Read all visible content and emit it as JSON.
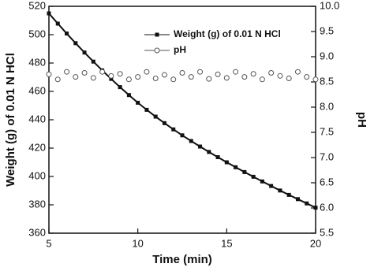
{
  "chart_data": {
    "type": "line",
    "xlabel": "Time (min)",
    "ylabel": "Weight (g) of 0.01 N HCl",
    "y2label": "pH",
    "x": [
      5,
      5.5,
      6,
      6.5,
      7,
      7.5,
      8,
      8.5,
      9,
      9.5,
      10,
      10.5,
      11,
      11.5,
      12,
      12.5,
      13,
      13.5,
      14,
      14.5,
      15,
      15.5,
      16,
      16.5,
      17,
      17.5,
      18,
      18.5,
      19,
      19.5,
      20
    ],
    "series": [
      {
        "name": "Weight (g) of 0.01 N HCl",
        "color": "#111111",
        "marker": "square",
        "line": true,
        "values": [
          515,
          507.8,
          500.8,
          494,
          487.4,
          481,
          474.8,
          468.8,
          463,
          457.4,
          452,
          447,
          442.2,
          437.6,
          433.2,
          429,
          425,
          421.1,
          417.3,
          413.6,
          410,
          406.5,
          403.1,
          399.8,
          396.5,
          393.3,
          390.1,
          387,
          384,
          381,
          378
        ]
      },
      {
        "name": "pH",
        "color": "#555555",
        "marker": "circle",
        "line": false,
        "axis": "y2",
        "values": [
          8.65,
          8.55,
          8.7,
          8.6,
          8.68,
          8.58,
          8.7,
          8.62,
          8.66,
          8.55,
          8.6,
          8.7,
          8.57,
          8.64,
          8.55,
          8.68,
          8.6,
          8.7,
          8.56,
          8.65,
          8.58,
          8.7,
          8.6,
          8.66,
          8.55,
          8.68,
          8.62,
          8.57,
          8.7,
          8.6,
          8.55
        ]
      }
    ],
    "xlim": [
      5,
      20
    ],
    "xticks": [
      5,
      10,
      15,
      20
    ],
    "ylim": [
      360,
      520
    ],
    "yticks": [
      360,
      380,
      400,
      420,
      440,
      460,
      480,
      500,
      520
    ],
    "y2lim": [
      5.5,
      10.0
    ],
    "y2ticks": [
      5.5,
      {
        "value": 6,
        "label": "6.0"
      },
      6.5,
      {
        "value": 7,
        "label": "7.0"
      },
      7.5,
      {
        "value": 8,
        "label": "8.0"
      },
      8.5,
      {
        "value": 9,
        "label": "9.0"
      },
      9.5,
      {
        "value": 10,
        "label": "10.0"
      }
    ],
    "legend": "top"
  }
}
